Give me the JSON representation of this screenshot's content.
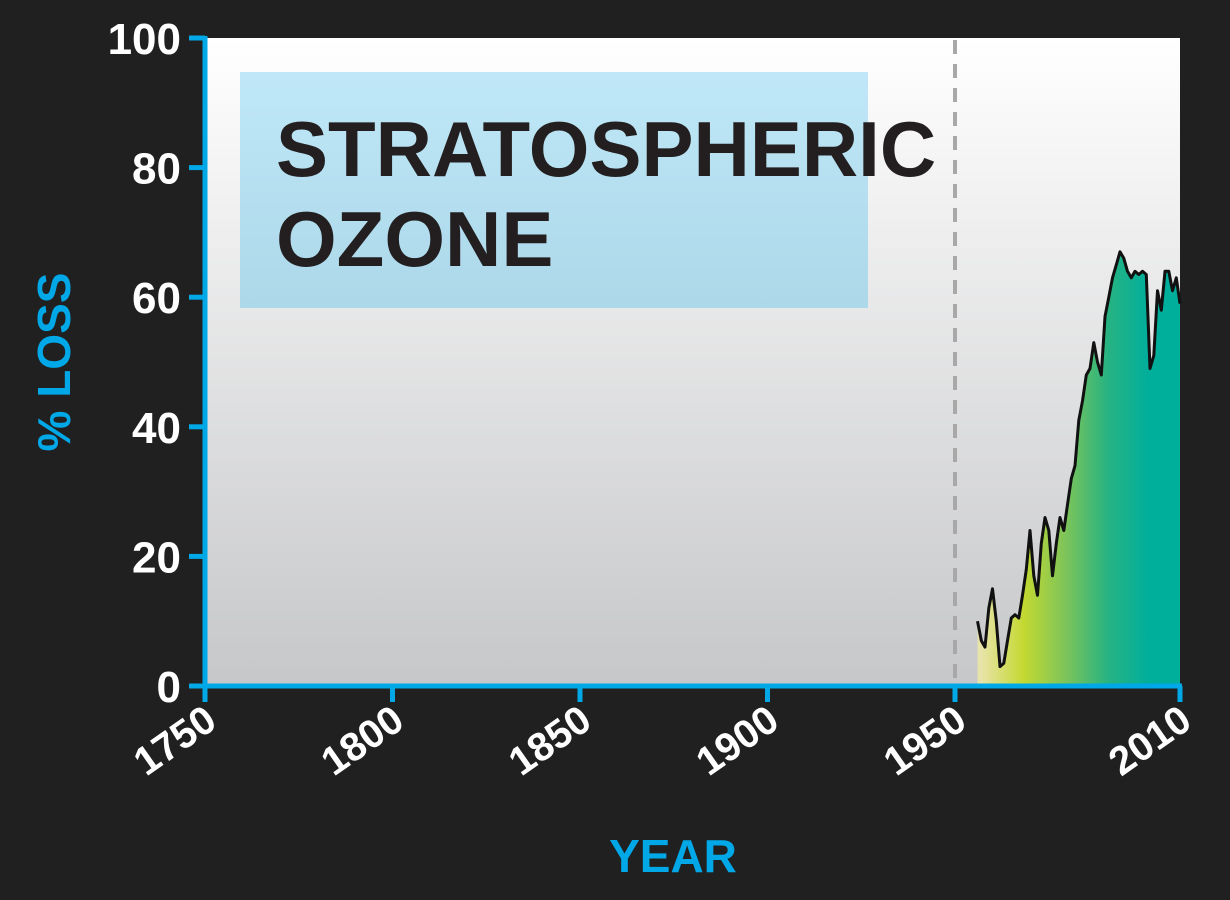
{
  "chart_data": {
    "type": "area",
    "title": "STRATOSPHERIC OZONE",
    "title_lines": [
      "STRATOSPHERIC",
      "OZONE"
    ],
    "xlabel": "YEAR",
    "ylabel": "% LOSS",
    "xlim": [
      1750,
      2010
    ],
    "ylim": [
      0,
      100
    ],
    "x_ticks": [
      1750,
      1800,
      1850,
      1900,
      1950,
      2010
    ],
    "x_tick_labels": [
      "1750",
      "1800",
      "1850",
      "1900",
      "1950",
      "2010"
    ],
    "highlight_tick": "1950",
    "y_ticks": [
      0,
      20,
      40,
      60,
      80,
      100
    ],
    "y_tick_labels": [
      "0",
      "20",
      "40",
      "60",
      "80",
      "100"
    ],
    "reference_line_x": 1950,
    "grid": false,
    "x": [
      1956,
      1957,
      1958,
      1959,
      1960,
      1961,
      1962,
      1963,
      1964,
      1965,
      1966,
      1967,
      1968,
      1969,
      1970,
      1971,
      1972,
      1973,
      1974,
      1975,
      1976,
      1977,
      1978,
      1979,
      1980,
      1981,
      1982,
      1983,
      1984,
      1985,
      1986,
      1987,
      1988,
      1989,
      1990,
      1991,
      1992,
      1993,
      1994,
      1995,
      1996,
      1997,
      1998,
      1999,
      2000,
      2001,
      2002,
      2003,
      2004,
      2005,
      2006,
      2007,
      2008,
      2009,
      2010
    ],
    "y": [
      10,
      7,
      6,
      12,
      15,
      10,
      3,
      3.5,
      7,
      10.5,
      11,
      10.5,
      14,
      18,
      24,
      17,
      14,
      22,
      26,
      24,
      17,
      22,
      26,
      24,
      28,
      32,
      34,
      41,
      44,
      48,
      49,
      53,
      50,
      48,
      57,
      60,
      63,
      65,
      67,
      66,
      64,
      63,
      64,
      63.5,
      64,
      63.5,
      49,
      51,
      61,
      58,
      64,
      64,
      61,
      63,
      59
    ],
    "colors": {
      "background": "#202020",
      "axis": "#00a8e8",
      "plot_bg_top": "#ffffff",
      "plot_bg_bottom": "#c6c7c9",
      "title_box": "#b5e1f1",
      "title_text": "#231f20",
      "highlight_tick": "#ed1c24",
      "reference_line": "#a8a8a8",
      "area_gradient": [
        "#e8e3a8",
        "#c3d930",
        "#7dc45a",
        "#27b382",
        "#00ae9c"
      ],
      "area_outline": "#111111"
    }
  }
}
